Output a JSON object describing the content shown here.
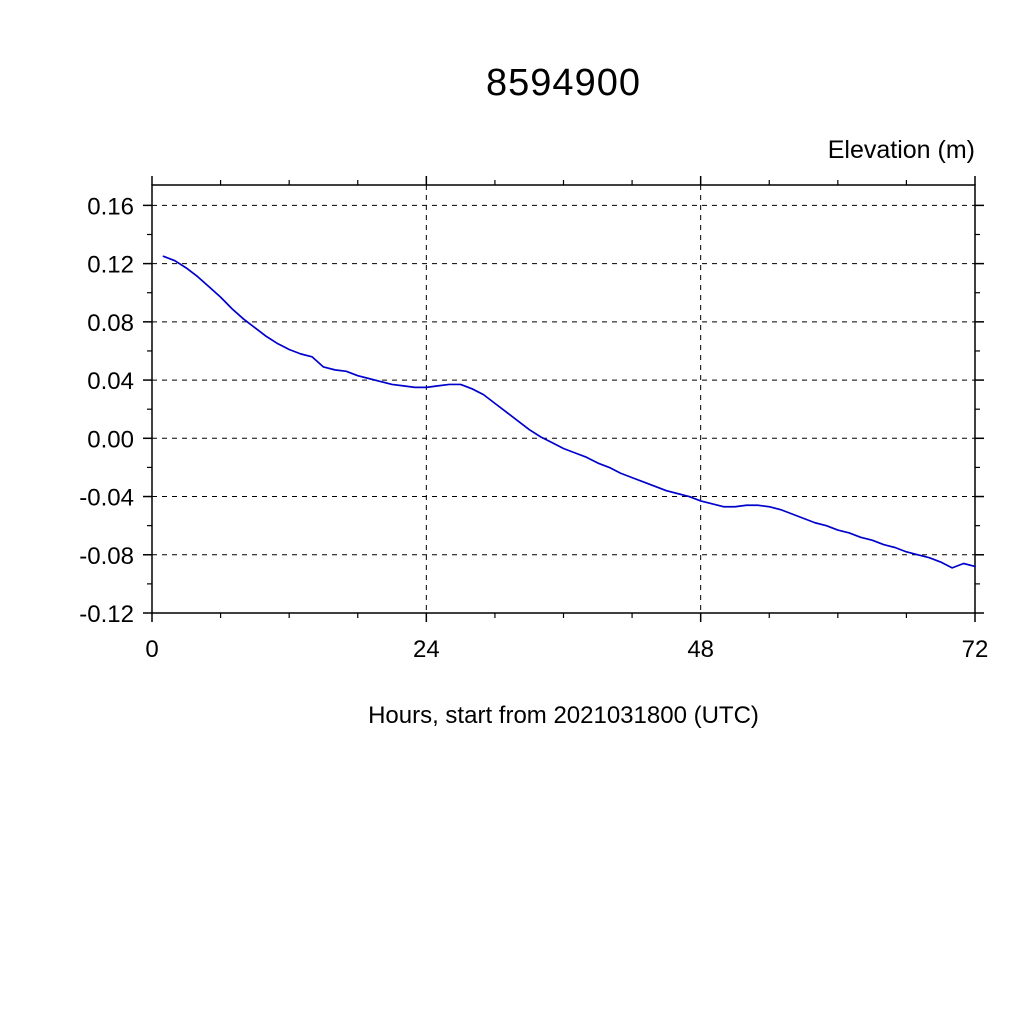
{
  "page": {
    "background": "#ffffff"
  },
  "chart_data": {
    "type": "line",
    "title": "8594900",
    "y_axis_label": "Elevation (m)",
    "xlabel": "Hours, start from 2021031800 (UTC)",
    "xlim": [
      0,
      72
    ],
    "ylim": [
      -0.12,
      0.174
    ],
    "x_major_ticks": [
      0,
      24,
      48,
      72
    ],
    "x_tick_labels": [
      "0",
      "24",
      "48",
      "72"
    ],
    "x_minor_step": 6,
    "x_gridlines": [
      24,
      48
    ],
    "y_major_ticks": [
      -0.12,
      -0.08,
      -0.04,
      0.0,
      0.04,
      0.08,
      0.12,
      0.16
    ],
    "y_tick_labels": [
      "-0.12",
      "-0.08",
      "-0.04",
      "0.00",
      "0.04",
      "0.08",
      "0.12",
      "0.16"
    ],
    "y_minor_step": 0.02,
    "grid_style": "dashed",
    "axis_color": "#000000",
    "grid_color": "#000000",
    "series": [
      {
        "name": "elevation",
        "color": "#0000cc",
        "x": [
          1,
          2,
          3,
          4,
          5,
          6,
          7,
          8,
          9,
          10,
          11,
          12,
          13,
          14,
          15,
          16,
          17,
          18,
          19,
          20,
          21,
          22,
          23,
          24,
          25,
          26,
          27,
          28,
          29,
          30,
          31,
          32,
          33,
          34,
          35,
          36,
          37,
          38,
          39,
          40,
          41,
          42,
          43,
          44,
          45,
          46,
          47,
          48,
          49,
          50,
          51,
          52,
          53,
          54,
          55,
          56,
          57,
          58,
          59,
          60,
          61,
          62,
          63,
          64,
          65,
          66,
          67,
          68,
          69,
          70,
          71,
          72
        ],
        "values": [
          0.125,
          0.122,
          0.117,
          0.111,
          0.104,
          0.097,
          0.089,
          0.082,
          0.076,
          0.07,
          0.065,
          0.061,
          0.058,
          0.056,
          0.049,
          0.047,
          0.046,
          0.043,
          0.041,
          0.039,
          0.037,
          0.036,
          0.035,
          0.035,
          0.036,
          0.037,
          0.037,
          0.034,
          0.03,
          0.024,
          0.018,
          0.012,
          0.006,
          0.001,
          -0.003,
          -0.007,
          -0.01,
          -0.013,
          -0.017,
          -0.02,
          -0.024,
          -0.027,
          -0.03,
          -0.033,
          -0.036,
          -0.038,
          -0.04,
          -0.043,
          -0.045,
          -0.047,
          -0.047,
          -0.046,
          -0.046,
          -0.047,
          -0.049,
          -0.052,
          -0.055,
          -0.058,
          -0.06,
          -0.063,
          -0.065,
          -0.068,
          -0.07,
          -0.073,
          -0.075,
          -0.078,
          -0.08,
          -0.082,
          -0.085,
          -0.089,
          -0.086,
          -0.088
        ]
      }
    ]
  }
}
